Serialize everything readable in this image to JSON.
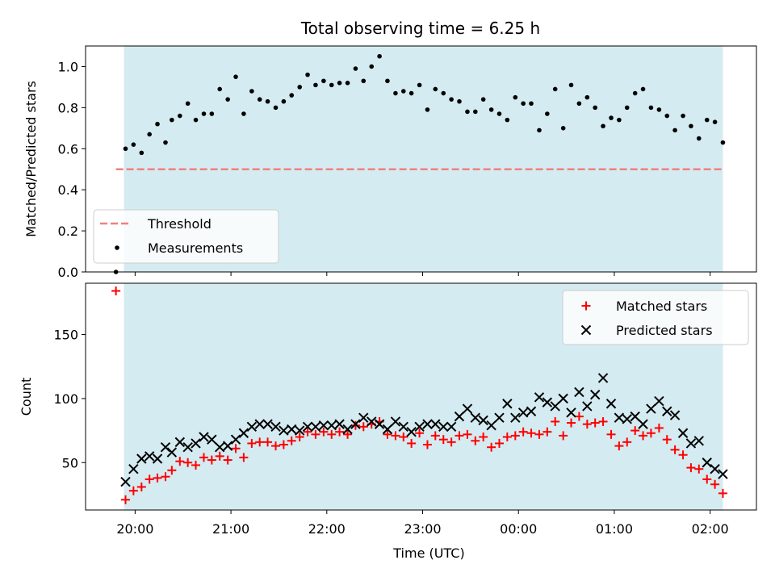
{
  "colors": {
    "observing_window": "#d4ebf1",
    "threshold": "#f08080",
    "matched": "#ff0000",
    "predicted": "#000000",
    "measurement": "#000000"
  },
  "chart_data": [
    {
      "id": "ratio",
      "type": "scatter",
      "title": "Total observing time = 6.25 h",
      "xlabel": "",
      "ylabel": "Matched/Predicted stars",
      "xlim": [
        -0.517,
        6.483
      ],
      "ylim": [
        0.0,
        1.1
      ],
      "yticks": [
        0.0,
        0.2,
        0.4,
        0.6,
        0.8,
        1.0
      ],
      "ytick_labels": [
        "0.0",
        "0.2",
        "0.4",
        "0.6",
        "0.8",
        "1.0"
      ],
      "observing_window": [
        -0.117,
        6.133
      ],
      "threshold": {
        "name": "Threshold",
        "value": 0.5,
        "x": [
          -0.2,
          6.133
        ],
        "style": "dashed"
      },
      "legend": {
        "placement": "lower-left",
        "entries": [
          "Threshold",
          "Measurements"
        ]
      },
      "series": [
        {
          "name": "Measurements",
          "marker": "dot",
          "x": [
            -0.2,
            -0.1,
            -0.017,
            0.067,
            0.15,
            0.233,
            0.317,
            0.383,
            0.467,
            0.55,
            0.633,
            0.717,
            0.8,
            0.883,
            0.967,
            1.05,
            1.133,
            1.217,
            1.3,
            1.383,
            1.467,
            1.55,
            1.633,
            1.717,
            1.8,
            1.883,
            1.967,
            2.05,
            2.133,
            2.217,
            2.3,
            2.383,
            2.467,
            2.55,
            2.633,
            2.717,
            2.8,
            2.883,
            2.967,
            3.05,
            3.133,
            3.217,
            3.3,
            3.383,
            3.467,
            3.55,
            3.633,
            3.717,
            3.8,
            3.883,
            3.967,
            4.05,
            4.133,
            4.217,
            4.3,
            4.383,
            4.467,
            4.55,
            4.633,
            4.717,
            4.8,
            4.883,
            4.967,
            5.05,
            5.133,
            5.217,
            5.3,
            5.383,
            5.467,
            5.55,
            5.633,
            5.717,
            5.8,
            5.883,
            5.967,
            6.05,
            6.133
          ],
          "y": [
            0.0,
            0.6,
            0.62,
            0.58,
            0.67,
            0.72,
            0.63,
            0.74,
            0.76,
            0.82,
            0.74,
            0.77,
            0.77,
            0.89,
            0.84,
            0.95,
            0.77,
            0.88,
            0.84,
            0.83,
            0.8,
            0.83,
            0.86,
            0.9,
            0.96,
            0.91,
            0.93,
            0.91,
            0.92,
            0.92,
            0.99,
            0.93,
            1.0,
            1.05,
            0.93,
            0.87,
            0.88,
            0.87,
            0.91,
            0.79,
            0.89,
            0.87,
            0.84,
            0.83,
            0.78,
            0.78,
            0.84,
            0.79,
            0.77,
            0.74,
            0.85,
            0.82,
            0.82,
            0.69,
            0.77,
            0.89,
            0.7,
            0.91,
            0.82,
            0.85,
            0.8,
            0.71,
            0.75,
            0.74,
            0.8,
            0.87,
            0.89,
            0.8,
            0.79,
            0.76,
            0.69,
            0.76,
            0.71,
            0.65,
            0.74,
            0.73,
            0.63
          ]
        }
      ]
    },
    {
      "id": "count",
      "type": "scatter",
      "title": "",
      "xlabel": "Time (UTC)",
      "ylabel": "Count",
      "xlim": [
        -0.517,
        6.483
      ],
      "ylim": [
        13,
        190
      ],
      "yticks": [
        50,
        100,
        150
      ],
      "ytick_labels": [
        "50",
        "100",
        "150"
      ],
      "xticks": [
        0,
        1,
        2,
        3,
        4,
        5,
        6
      ],
      "xtick_labels": [
        "20:00",
        "21:00",
        "22:00",
        "23:00",
        "00:00",
        "01:00",
        "02:00"
      ],
      "observing_window": [
        -0.117,
        6.133
      ],
      "legend": {
        "placement": "top-right",
        "entries": [
          "Matched stars",
          "Predicted stars"
        ]
      },
      "series": [
        {
          "name": "Matched stars",
          "marker": "plus",
          "x": [
            -0.2,
            -0.1,
            -0.017,
            0.067,
            0.15,
            0.233,
            0.317,
            0.383,
            0.467,
            0.55,
            0.633,
            0.717,
            0.8,
            0.883,
            0.967,
            1.05,
            1.133,
            1.217,
            1.3,
            1.383,
            1.467,
            1.55,
            1.633,
            1.717,
            1.8,
            1.883,
            1.967,
            2.05,
            2.133,
            2.217,
            2.3,
            2.383,
            2.467,
            2.55,
            2.633,
            2.717,
            2.8,
            2.883,
            2.967,
            3.05,
            3.133,
            3.217,
            3.3,
            3.383,
            3.467,
            3.55,
            3.633,
            3.717,
            3.8,
            3.883,
            3.967,
            4.05,
            4.133,
            4.217,
            4.3,
            4.383,
            4.467,
            4.55,
            4.633,
            4.717,
            4.8,
            4.883,
            4.967,
            5.05,
            5.133,
            5.217,
            5.3,
            5.383,
            5.467,
            5.55,
            5.633,
            5.717,
            5.8,
            5.883,
            5.967,
            6.05,
            6.133
          ],
          "y": [
            184,
            21,
            28,
            31,
            37,
            38,
            39,
            44,
            51,
            50,
            48,
            54,
            52,
            55,
            52,
            61,
            54,
            65,
            66,
            66,
            63,
            64,
            67,
            70,
            74,
            72,
            74,
            72,
            74,
            72,
            79,
            78,
            80,
            82,
            72,
            71,
            70,
            65,
            73,
            64,
            71,
            68,
            66,
            71,
            72,
            67,
            70,
            62,
            65,
            70,
            71,
            74,
            73,
            72,
            74,
            82,
            71,
            81,
            86,
            80,
            81,
            82,
            72,
            63,
            66,
            75,
            71,
            73,
            77,
            68,
            60,
            56,
            46,
            45,
            37,
            33,
            26
          ]
        },
        {
          "name": "Predicted stars",
          "marker": "x",
          "x": [
            -0.1,
            -0.017,
            0.067,
            0.15,
            0.233,
            0.317,
            0.383,
            0.467,
            0.55,
            0.633,
            0.717,
            0.8,
            0.883,
            0.967,
            1.05,
            1.133,
            1.217,
            1.3,
            1.383,
            1.467,
            1.55,
            1.633,
            1.717,
            1.8,
            1.883,
            1.967,
            2.05,
            2.133,
            2.217,
            2.3,
            2.383,
            2.467,
            2.55,
            2.633,
            2.717,
            2.8,
            2.883,
            2.967,
            3.05,
            3.133,
            3.217,
            3.3,
            3.383,
            3.467,
            3.55,
            3.633,
            3.717,
            3.8,
            3.883,
            3.967,
            4.05,
            4.133,
            4.217,
            4.3,
            4.383,
            4.467,
            4.55,
            4.633,
            4.717,
            4.8,
            4.883,
            4.967,
            5.05,
            5.133,
            5.217,
            5.3,
            5.383,
            5.467,
            5.55,
            5.633,
            5.717,
            5.8,
            5.883,
            5.967,
            6.05,
            6.133
          ],
          "y": [
            35,
            45,
            53,
            55,
            53,
            62,
            58,
            66,
            62,
            65,
            70,
            68,
            62,
            63,
            68,
            73,
            78,
            80,
            80,
            78,
            75,
            76,
            75,
            78,
            78,
            79,
            79,
            80,
            76,
            80,
            85,
            82,
            80,
            76,
            82,
            78,
            74,
            78,
            80,
            80,
            78,
            78,
            86,
            92,
            85,
            83,
            79,
            85,
            96,
            85,
            89,
            90,
            101,
            97,
            94,
            100,
            89,
            105,
            94,
            103,
            116,
            96,
            85,
            84,
            86,
            80,
            92,
            98,
            90,
            87,
            73,
            65,
            67,
            50,
            45,
            41
          ]
        }
      ]
    }
  ]
}
